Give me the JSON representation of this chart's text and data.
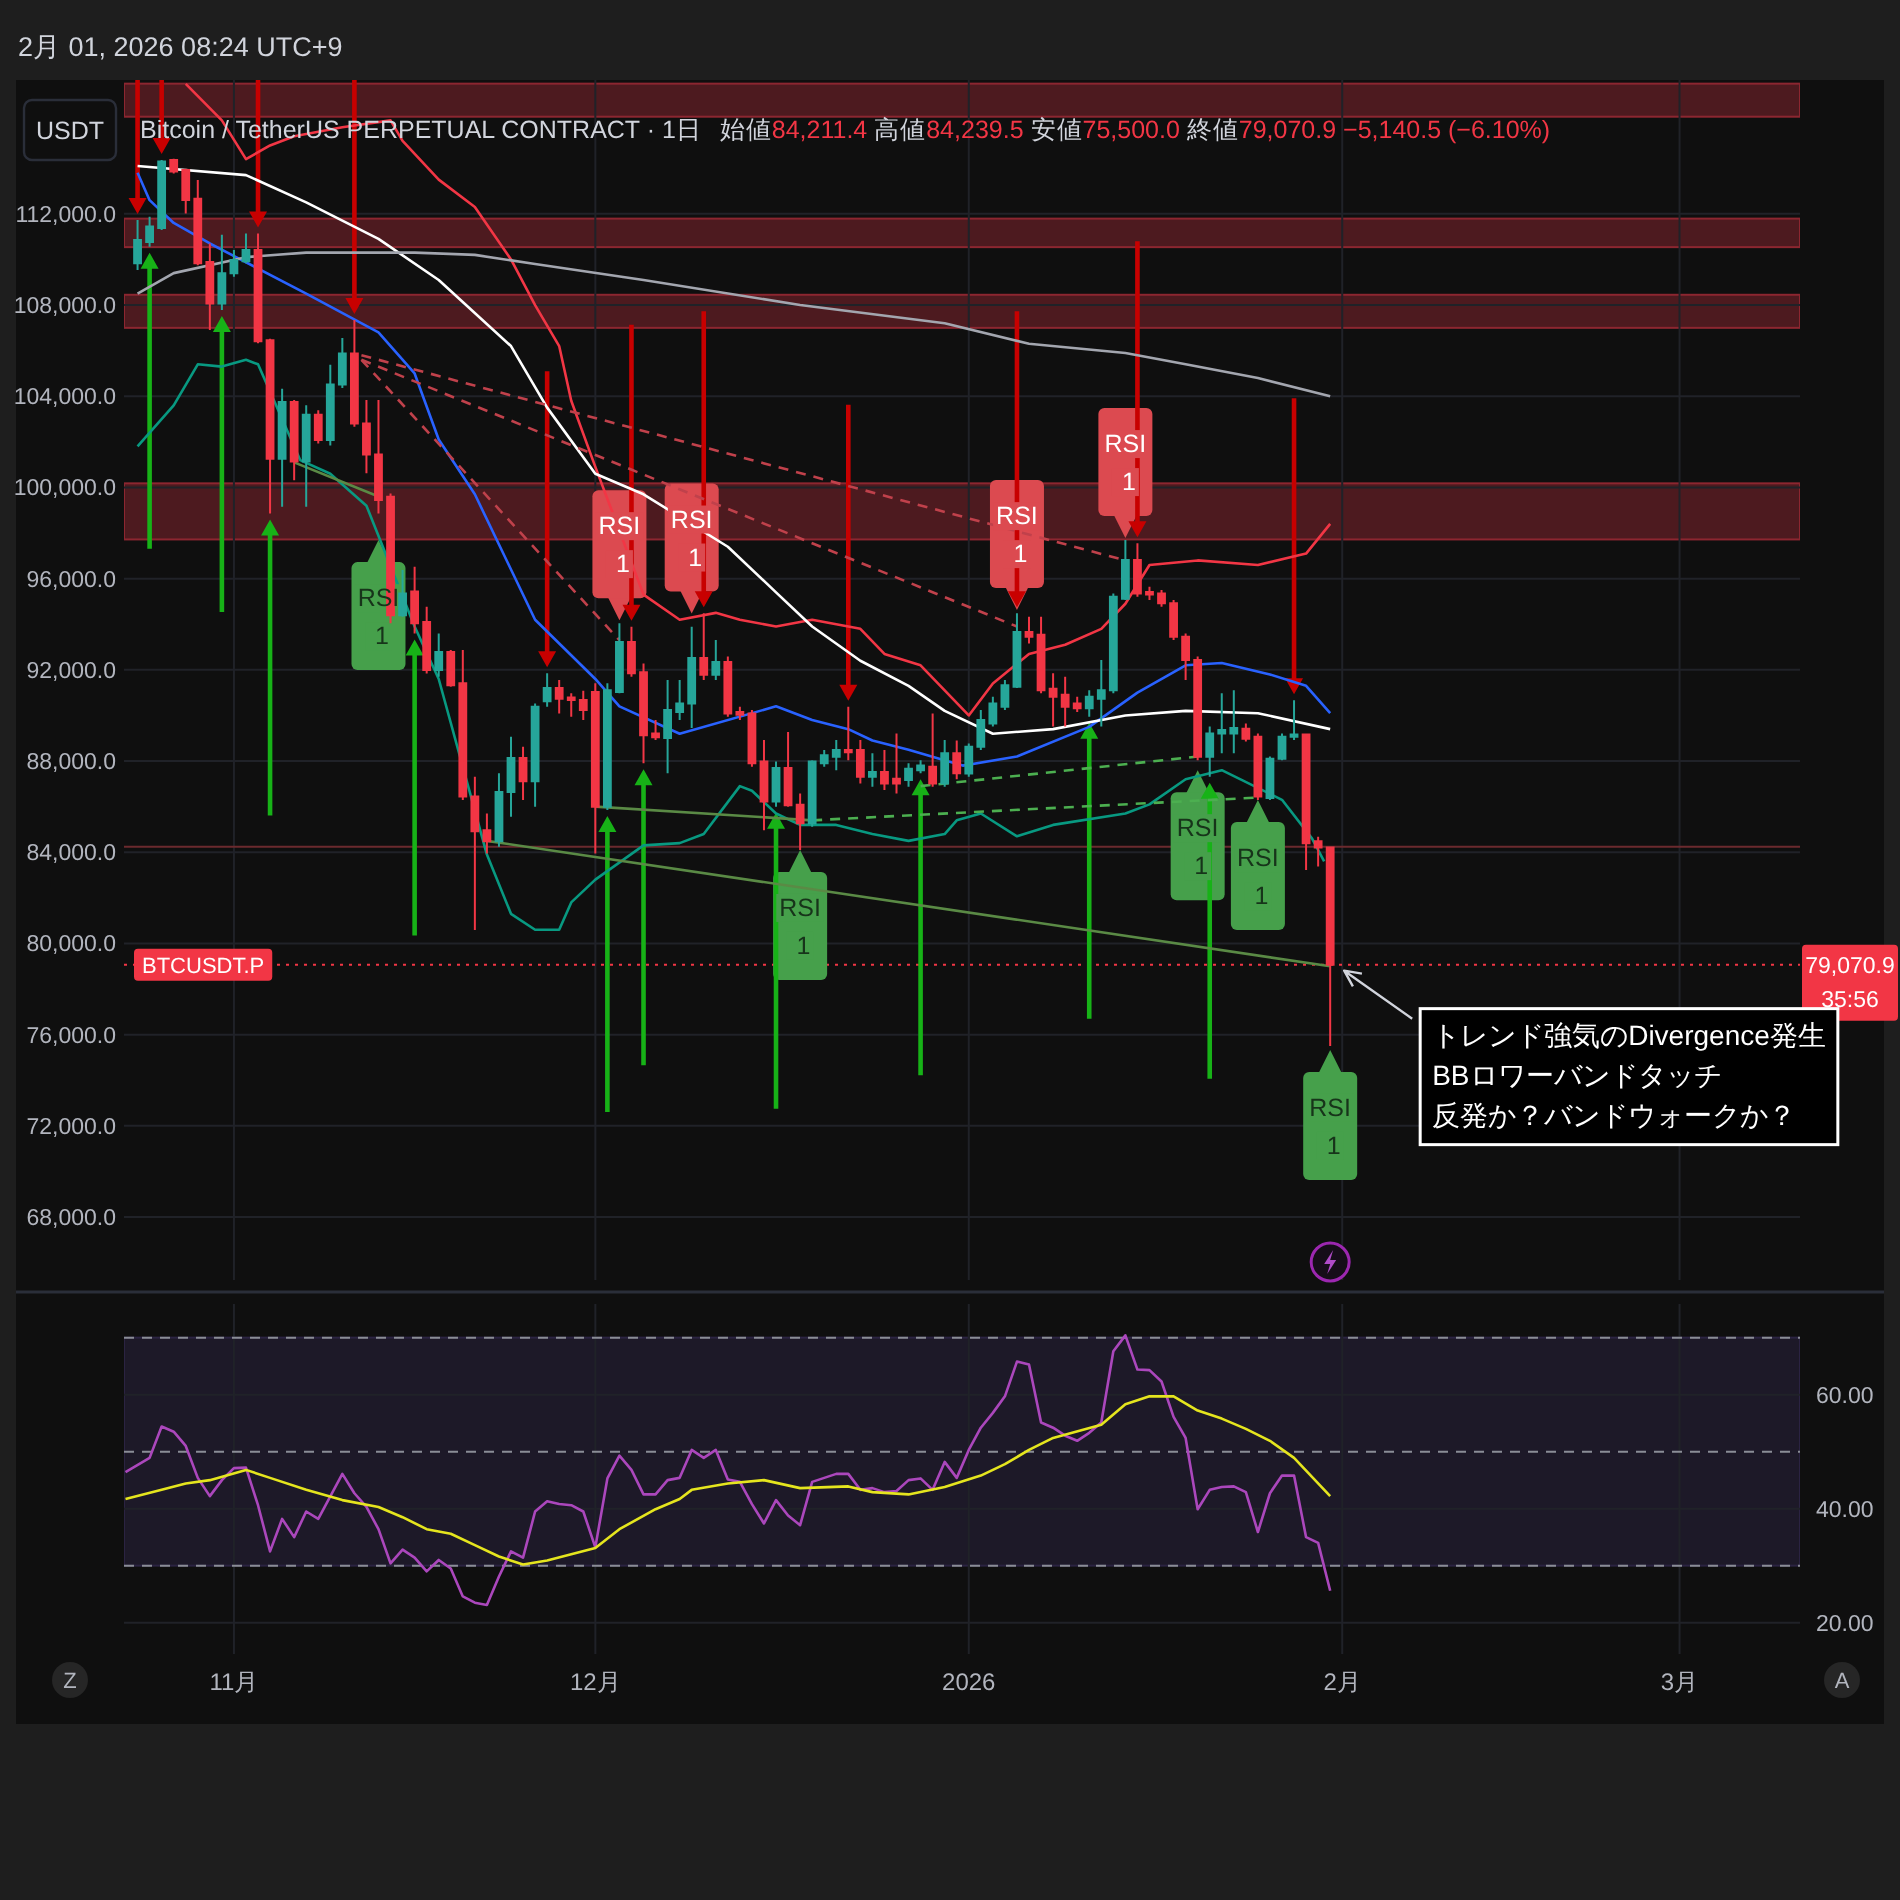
{
  "chart_data": [
    {
      "type": "candlestick",
      "title": "Bitcoin / TetherUS PERPETUAL CONTRACT · 1日",
      "subtitle": "始値84,211.4 高値84,239.5 安値75,500.0 終値79,070.9 −5,140.5 (−6.10%)",
      "ylabel": "USDT",
      "annotations": [
        "2月 01, 2026 08:24 UTC+9",
        "BTCUSDT.P",
        "35:56",
        "BBロワーバンドタッチ",
        "反発か？バンドウォークか？",
        {
          "text": "RSI 1",
          "x": "2025-11-13",
          "y": 97690
        },
        {
          "text": "RSI 1",
          "x": "2025-12-03",
          "y": 94180
        },
        {
          "text": "RSI 1",
          "x": "2025-12-09",
          "y": 94470
        },
        {
          "text": "RSI 1",
          "x": "2025-12-18",
          "y": 84100
        },
        {
          "text": "RSI 1",
          "x": "2026-01-05",
          "y": 94620
        },
        {
          "text": "RSI 1",
          "x": "2026-01-14",
          "y": 97780
        },
        {
          "text": "RSI 1",
          "x": "2026-01-20",
          "y": 87600
        },
        {
          "text": "RSI 1",
          "x": "2026-01-25",
          "y": 86290
        },
        {
          "text": "RSI 1",
          "x": "2026-01-31",
          "y": 75330
        },
        {
          "text": "トレンド強気のDivergence発生",
          "x": "2026-01-31",
          "y": 79070.9
        }
      ],
      "x": [
        "2025-10-24",
        "2025-10-25",
        "2025-10-26",
        "2025-10-27",
        "2025-10-28",
        "2025-10-29",
        "2025-10-30",
        "2025-10-31",
        "2025-11-01",
        "2025-11-02",
        "2025-11-03",
        "2025-11-04",
        "2025-11-05",
        "2025-11-06",
        "2025-11-07",
        "2025-11-08",
        "2025-11-09",
        "2025-11-10",
        "2025-11-11",
        "2025-11-12",
        "2025-11-13",
        "2025-11-14",
        "2025-11-15",
        "2025-11-16",
        "2025-11-17",
        "2025-11-18",
        "2025-11-19",
        "2025-11-20",
        "2025-11-21",
        "2025-11-22",
        "2025-11-23",
        "2025-11-24",
        "2025-11-25",
        "2025-11-26",
        "2025-11-27",
        "2025-11-28",
        "2025-11-29",
        "2025-11-30",
        "2025-12-01",
        "2025-12-02",
        "2025-12-03",
        "2025-12-04",
        "2025-12-05",
        "2025-12-06",
        "2025-12-07",
        "2025-12-08",
        "2025-12-09",
        "2025-12-10",
        "2025-12-11",
        "2025-12-12",
        "2025-12-13",
        "2025-12-14",
        "2025-12-15",
        "2025-12-16",
        "2025-12-17",
        "2025-12-18",
        "2025-12-19",
        "2025-12-20",
        "2025-12-21",
        "2025-12-22",
        "2025-12-23",
        "2025-12-24",
        "2025-12-25",
        "2025-12-26",
        "2025-12-27",
        "2025-12-28",
        "2025-12-29",
        "2025-12-30",
        "2025-12-31",
        "2026-01-01",
        "2026-01-02",
        "2026-01-03",
        "2026-01-04",
        "2026-01-05",
        "2026-01-06",
        "2026-01-07",
        "2026-01-08",
        "2026-01-09",
        "2026-01-10",
        "2026-01-11",
        "2026-01-12",
        "2026-01-13",
        "2026-01-14",
        "2026-01-15",
        "2026-01-16",
        "2026-01-17",
        "2026-01-18",
        "2026-01-19",
        "2026-01-20",
        "2026-01-21",
        "2026-01-22",
        "2026-01-23",
        "2026-01-24",
        "2026-01-25",
        "2026-01-26",
        "2026-01-27",
        "2026-01-28",
        "2026-01-29",
        "2026-01-30",
        "2026-01-31"
      ],
      "ohlc": [
        [
          109830,
          111730,
          109540,
          110850
        ],
        [
          110760,
          111870,
          110560,
          111440
        ],
        [
          111380,
          114360,
          111290,
          114300
        ],
        [
          114360,
          114420,
          113770,
          113860
        ],
        [
          113920,
          113980,
          112020,
          112610
        ],
        [
          112660,
          113480,
          109740,
          109830
        ],
        [
          109890,
          110700,
          106900,
          108070
        ],
        [
          108070,
          111080,
          107780,
          109390
        ],
        [
          109390,
          110410,
          109240,
          109970
        ],
        [
          109920,
          111140,
          109830,
          110410
        ],
        [
          110410,
          111140,
          106320,
          106410
        ],
        [
          106460,
          106520,
          98860,
          101260
        ],
        [
          101260,
          104330,
          99150,
          103750
        ],
        [
          103750,
          103830,
          100320,
          101140
        ],
        [
          101140,
          103600,
          99150,
          103190
        ],
        [
          103190,
          103390,
          101930,
          102080
        ],
        [
          102080,
          105380,
          101840,
          104510
        ],
        [
          104510,
          106550,
          104360,
          105880
        ],
        [
          105880,
          107340,
          102660,
          102810
        ],
        [
          102810,
          103830,
          100620,
          101440
        ],
        [
          101440,
          103830,
          98860,
          99450
        ],
        [
          99590,
          99740,
          94040,
          94390
        ],
        [
          94390,
          96380,
          94330,
          95350
        ],
        [
          95440,
          96520,
          93600,
          94040
        ],
        [
          94100,
          94770,
          91840,
          91990
        ],
        [
          91990,
          93600,
          91700,
          92780
        ],
        [
          92780,
          92870,
          91260,
          91320
        ],
        [
          91410,
          92870,
          86290,
          86440
        ],
        [
          86440,
          87310,
          80590,
          84920
        ],
        [
          84970,
          85700,
          83950,
          84480
        ],
        [
          84480,
          87460,
          84240,
          86640
        ],
        [
          86640,
          89070,
          85560,
          88130
        ],
        [
          88130,
          88630,
          86290,
          87110
        ],
        [
          87110,
          90530,
          86000,
          90380
        ],
        [
          90620,
          91850,
          90380,
          91200
        ],
        [
          91200,
          91550,
          90090,
          90730
        ],
        [
          90790,
          90970,
          89940,
          90680
        ],
        [
          90680,
          91080,
          89800,
          90240
        ],
        [
          91030,
          91410,
          83950,
          86000
        ],
        [
          86000,
          91410,
          85850,
          91110
        ],
        [
          91030,
          94040,
          90970,
          93220
        ],
        [
          93220,
          93890,
          91700,
          91850
        ],
        [
          91900,
          92280,
          87900,
          89130
        ],
        [
          89210,
          89800,
          88920,
          89040
        ],
        [
          89010,
          91550,
          87460,
          90240
        ],
        [
          90150,
          91550,
          89800,
          90530
        ],
        [
          90530,
          93890,
          89450,
          92520
        ],
        [
          92520,
          94480,
          91550,
          91790
        ],
        [
          91790,
          93310,
          91550,
          92340
        ],
        [
          92340,
          92580,
          89940,
          90090
        ],
        [
          90150,
          90380,
          89800,
          90030
        ],
        [
          90090,
          90240,
          87750,
          87900
        ],
        [
          87980,
          88920,
          84970,
          86230
        ],
        [
          86230,
          87980,
          86000,
          87690
        ],
        [
          87690,
          89270,
          86000,
          86060
        ],
        [
          86080,
          86580,
          84100,
          85270
        ],
        [
          85270,
          88040,
          85120,
          87980
        ],
        [
          87900,
          88480,
          87750,
          88250
        ],
        [
          88190,
          88920,
          87600,
          88480
        ],
        [
          88480,
          90380,
          88040,
          88390
        ],
        [
          88480,
          88920,
          87020,
          87310
        ],
        [
          87310,
          88340,
          86870,
          87520
        ],
        [
          87520,
          88480,
          86730,
          87020
        ],
        [
          87220,
          89210,
          86580,
          87020
        ],
        [
          87170,
          87900,
          86870,
          87660
        ],
        [
          87600,
          88040,
          87460,
          87810
        ],
        [
          87750,
          90090,
          86870,
          87020
        ],
        [
          87020,
          88920,
          86870,
          88340
        ],
        [
          88340,
          88900,
          87200,
          87460
        ],
        [
          87460,
          88770,
          87310,
          88630
        ],
        [
          88630,
          90240,
          88480,
          89800
        ],
        [
          89650,
          90820,
          89510,
          90530
        ],
        [
          90380,
          91550,
          90240,
          91320
        ],
        [
          91260,
          94480,
          91200,
          93660
        ],
        [
          93660,
          94330,
          93160,
          93450
        ],
        [
          93540,
          94330,
          90970,
          91110
        ],
        [
          91170,
          91850,
          89510,
          90820
        ],
        [
          90910,
          91700,
          89510,
          90380
        ],
        [
          90530,
          90820,
          90150,
          90320
        ],
        [
          90320,
          91110,
          89940,
          90820
        ],
        [
          90730,
          92430,
          89510,
          91110
        ],
        [
          91110,
          95350,
          90970,
          95210
        ],
        [
          95120,
          97690,
          95060,
          96820
        ],
        [
          96820,
          97550,
          95210,
          95350
        ],
        [
          95410,
          95650,
          95060,
          95300
        ],
        [
          95350,
          95500,
          94770,
          94920
        ],
        [
          94920,
          95060,
          93310,
          93450
        ],
        [
          93450,
          93600,
          91550,
          92430
        ],
        [
          92430,
          92580,
          88040,
          88190
        ],
        [
          88190,
          89510,
          87310,
          89210
        ],
        [
          89210,
          90970,
          88340,
          89360
        ],
        [
          89210,
          91110,
          88340,
          89450
        ],
        [
          89420,
          89650,
          88860,
          88980
        ],
        [
          89070,
          89210,
          86290,
          86440
        ],
        [
          86380,
          88200,
          86290,
          88100
        ],
        [
          88100,
          89210,
          88040,
          89070
        ],
        [
          89070,
          90670,
          88920,
          89160
        ],
        [
          89160,
          89210,
          83220,
          84390
        ],
        [
          84480,
          84680,
          83370,
          84211.4
        ],
        [
          84211.4,
          84239.5,
          75500.0,
          79070.9
        ]
      ],
      "series": [
        {
          "type": "line",
          "color": "#f23645",
          "x": [
            "2025-10-28",
            "2025-10-31",
            "2025-11-02",
            "2025-11-04",
            "2025-11-06",
            "2025-11-10",
            "2025-11-14",
            "2025-11-15",
            "2025-11-18",
            "2025-11-21",
            "2025-11-24",
            "2025-11-26",
            "2025-11-28",
            "2025-11-29",
            "2025-12-01",
            "2025-12-05",
            "2025-12-08",
            "2025-12-11",
            "2025-12-13",
            "2025-12-16",
            "2025-12-19",
            "2025-12-23",
            "2025-12-25",
            "2025-12-28",
            "2026-01-01",
            "2026-01-03",
            "2026-01-06",
            "2026-01-09",
            "2026-01-12",
            "2026-01-14",
            "2026-01-16",
            "2026-01-20",
            "2026-01-25",
            "2026-01-29",
            "2026-01-31"
          ],
          "values": [
            117700,
            116100,
            114400,
            115000,
            115400,
            115800,
            116100,
            115200,
            113500,
            112300,
            110000,
            108000,
            106200,
            103800,
            100900,
            95300,
            94200,
            94500,
            94200,
            93900,
            94200,
            93800,
            92700,
            92200,
            90000,
            91400,
            92700,
            93100,
            93800,
            94900,
            96600,
            96800,
            96600,
            97100,
            98400
          ]
        },
        {
          "type": "line",
          "color": "#2962ff",
          "x": [
            "2025-10-24",
            "2025-10-25",
            "2025-10-27",
            "2025-10-30",
            "2025-11-07",
            "2025-11-13",
            "2025-11-16",
            "2025-11-18",
            "2025-11-21",
            "2025-11-24",
            "2025-11-26",
            "2025-12-01",
            "2025-12-03",
            "2025-12-08",
            "2025-12-16",
            "2025-12-19",
            "2025-12-22",
            "2025-12-24",
            "2025-12-27",
            "2025-12-31T12:00",
            "2026-01-05",
            "2026-01-11",
            "2026-01-15",
            "2026-01-19",
            "2026-01-22",
            "2026-01-26",
            "2026-01-29",
            "2026-01-31"
          ],
          "values": [
            113800,
            112600,
            111600,
            110700,
            108500,
            106800,
            105000,
            102100,
            99700,
            96400,
            94200,
            91600,
            90400,
            89200,
            90400,
            89800,
            89400,
            88900,
            88500,
            87800,
            88200,
            89500,
            91000,
            92200,
            92300,
            91800,
            91300,
            90100
          ]
        },
        {
          "type": "line",
          "color": "#089981",
          "x": [
            "2025-10-24",
            "2025-10-27",
            "2025-10-29",
            "2025-10-31",
            "2025-11-02",
            "2025-11-03",
            "2025-11-06T12:00",
            "2025-11-09",
            "2025-11-12",
            "2025-11-16",
            "2025-11-18",
            "2025-11-22",
            "2025-11-24",
            "2025-11-26",
            "2025-11-28",
            "2025-11-29",
            "2025-12-01",
            "2025-12-05",
            "2025-12-08",
            "2025-12-10",
            "2025-12-13",
            "2025-12-14",
            "2025-12-16",
            "2025-12-18",
            "2025-12-21",
            "2025-12-24",
            "2025-12-27",
            "2025-12-30",
            "2025-12-31",
            "2026-01-02",
            "2026-01-05",
            "2026-01-08",
            "2026-01-14",
            "2026-01-16",
            "2026-01-19",
            "2026-01-22",
            "2026-01-27",
            "2026-01-29T12:00",
            "2026-01-30T12:00"
          ],
          "values": [
            101800,
            103600,
            105400,
            105300,
            105600,
            105400,
            101200,
            100600,
            99200,
            93900,
            91600,
            83900,
            81300,
            80600,
            80600,
            81800,
            82800,
            84300,
            84400,
            84800,
            86900,
            86700,
            85700,
            85200,
            85200,
            84800,
            84500,
            84800,
            85400,
            85700,
            84700,
            85200,
            85700,
            86100,
            87200,
            87600,
            86300,
            84600,
            83600
          ]
        },
        {
          "type": "line",
          "color": "#ffffff",
          "x": [
            "2025-10-24",
            "2025-11-02",
            "2025-11-07",
            "2025-11-13",
            "2025-11-18",
            "2025-11-24",
            "2025-11-27",
            "2025-12-01",
            "2025-12-05",
            "2025-12-12",
            "2025-12-16",
            "2025-12-19",
            "2025-12-23",
            "2025-12-27",
            "2025-12-30",
            "2026-01-03",
            "2026-01-08",
            "2026-01-14",
            "2026-01-19",
            "2026-01-25",
            "2026-01-31"
          ],
          "values": [
            114100,
            113700,
            112500,
            110900,
            109100,
            106200,
            103500,
            100600,
            99700,
            97400,
            95400,
            93900,
            92400,
            91300,
            90200,
            89200,
            89400,
            90000,
            90200,
            90100,
            89400
          ]
        },
        {
          "type": "line",
          "color": "#a3a6af",
          "x": [
            "2025-10-24",
            "2025-10-27",
            "2025-11-02",
            "2025-11-07",
            "2025-11-13",
            "2025-11-16",
            "2025-11-21",
            "2025-11-26",
            "2025-12-05",
            "2025-12-18",
            "2025-12-30",
            "2026-01-06",
            "2026-01-14",
            "2026-01-19",
            "2026-01-25",
            "2026-01-31"
          ],
          "values": [
            108500,
            109400,
            110100,
            110300,
            110300,
            110300,
            110200,
            109800,
            109100,
            108000,
            107200,
            106300,
            105900,
            105400,
            104800,
            104000
          ]
        },
        {
          "type": "line",
          "color": "#c0414b",
          "line_style": "dashed",
          "x": [
            "2025-11-11T14:00",
            "2025-12-03"
          ],
          "values": [
            105600,
            93300
          ]
        },
        {
          "type": "line",
          "color": "#c0414b",
          "line_style": "dashed",
          "x": [
            "2025-11-11T14:00",
            "2026-01-05"
          ],
          "values": [
            105600,
            93900
          ]
        },
        {
          "type": "line",
          "color": "#c0414b",
          "line_style": "dashed",
          "x": [
            "2025-11-11T14:00",
            "2026-01-14"
          ],
          "values": [
            105800,
            96800
          ]
        },
        {
          "type": "line",
          "color": "#5a8a45",
          "x": [
            "2025-11-06",
            "2025-11-13"
          ],
          "values": [
            101100,
            99600
          ]
        },
        {
          "type": "line",
          "color": "#5a8a45",
          "x": [
            "2025-11-22",
            "2026-01-31"
          ],
          "values": [
            84500,
            79000
          ]
        },
        {
          "type": "line",
          "color": "#5a8a45",
          "x": [
            "2025-12-01",
            "2025-12-19"
          ],
          "values": [
            86000,
            85400
          ]
        },
        {
          "type": "line",
          "color": "#4caf50",
          "line_style": "dashed",
          "x": [
            "2025-12-19",
            "2026-01-25"
          ],
          "values": [
            85400,
            86400
          ]
        },
        {
          "type": "line",
          "color": "#4caf50",
          "line_style": "dashed",
          "x": [
            "2025-12-28",
            "2026-01-20"
          ],
          "values": [
            86900,
            88200
          ]
        }
      ],
      "xlim": [
        "2025-10-22T21:00",
        "2026-03-11"
      ],
      "ylim": [
        65240,
        117870
      ],
      "xticks": [
        {
          "value": "2025-11-01",
          "label": null
        },
        {
          "value": "2025-12-01",
          "label": null
        },
        {
          "value": "2026-01-01",
          "label": null
        },
        {
          "value": "2026-02-01",
          "label": null
        },
        {
          "value": "2026-03-01",
          "label": null
        }
      ],
      "yticks": [
        {
          "value": 68000,
          "label": "68,000.0"
        },
        {
          "value": 72000,
          "label": "72,000.0"
        },
        {
          "value": 76000,
          "label": "76,000.0"
        },
        {
          "value": 80000,
          "label": "80,000.0"
        },
        {
          "value": 84000,
          "label": "84,000.0"
        },
        {
          "value": 88000,
          "label": "88,000.0"
        },
        {
          "value": 92000,
          "label": "92,000.0"
        },
        {
          "value": 96000,
          "label": "96,000.0"
        },
        {
          "value": 100000,
          "label": "100,000.0"
        },
        {
          "value": 104000,
          "label": "104,000.0"
        },
        {
          "value": 108000,
          "label": "108,000.0"
        },
        {
          "value": 112000,
          "label": "112,000.0"
        }
      ],
      "tick_labels": "y",
      "grid": true,
      "bands": [
        {
          "axis": "y",
          "from": 116260,
          "to": 117710,
          "color": "#8c2630"
        },
        {
          "axis": "y",
          "from": 110540,
          "to": 111790,
          "color": "#8c2630"
        },
        {
          "axis": "y",
          "from": 107000,
          "to": 108450,
          "color": "#8c2630"
        },
        {
          "axis": "y",
          "from": 97720,
          "to": 100180,
          "color": "#8c2630"
        }
      ],
      "ref_lines": [
        {
          "axis": "y",
          "value": 84240,
          "color": "#6b2a2e",
          "line_style": "solid"
        },
        {
          "axis": "y",
          "value": 79070.9,
          "label": "79,070.9",
          "color": "#f23645",
          "line_style": "dotted"
        }
      ]
    },
    {
      "type": "line",
      "series": [
        {
          "color": "#ab47bc",
          "x": [
            "2025-10-23",
            "2025-10-25",
            "2025-10-26",
            "2025-10-27",
            "2025-10-28",
            "2025-10-29",
            "2025-10-30",
            "2025-10-31",
            "2025-11-01",
            "2025-11-02",
            "2025-11-03",
            "2025-11-04",
            "2025-11-05",
            "2025-11-06",
            "2025-11-07",
            "2025-11-08",
            "2025-11-10",
            "2025-11-11",
            "2025-11-12",
            "2025-11-13",
            "2025-11-14",
            "2025-11-15",
            "2025-11-16",
            "2025-11-17",
            "2025-11-18",
            "2025-11-19",
            "2025-11-20",
            "2025-11-21",
            "2025-11-22",
            "2025-11-23",
            "2025-11-24",
            "2025-11-25",
            "2025-11-26",
            "2025-11-27",
            "2025-11-28",
            "2025-11-29",
            "2025-11-30",
            "2025-12-01",
            "2025-12-02",
            "2025-12-03",
            "2025-12-04",
            "2025-12-05",
            "2025-12-06",
            "2025-12-07",
            "2025-12-08",
            "2025-12-09",
            "2025-12-10",
            "2025-12-11",
            "2025-12-12",
            "2025-12-13",
            "2025-12-14",
            "2025-12-15",
            "2025-12-16",
            "2025-12-17",
            "2025-12-18",
            "2025-12-19",
            "2025-12-20",
            "2025-12-21",
            "2025-12-22",
            "2025-12-23",
            "2025-12-24",
            "2025-12-25",
            "2025-12-26",
            "2025-12-27",
            "2025-12-28",
            "2025-12-29",
            "2025-12-30",
            "2025-12-31",
            "2026-01-01",
            "2026-01-02",
            "2026-01-03",
            "2026-01-04",
            "2026-01-05",
            "2026-01-06",
            "2026-01-07",
            "2026-01-08",
            "2026-01-09",
            "2026-01-10",
            "2026-01-11",
            "2026-01-12",
            "2026-01-13",
            "2026-01-14",
            "2026-01-15",
            "2026-01-16",
            "2026-01-17",
            "2026-01-18",
            "2026-01-19",
            "2026-01-20",
            "2026-01-21",
            "2026-01-22",
            "2026-01-23",
            "2026-01-24",
            "2026-01-25",
            "2026-01-26",
            "2026-01-27",
            "2026-01-28",
            "2026-01-29",
            "2026-01-30",
            "2026-01-31"
          ],
          "values": [
            46.4,
            48.9,
            54.4,
            53.5,
            51.0,
            45.4,
            42.2,
            45.0,
            47.1,
            47.2,
            40.6,
            32.5,
            38.2,
            35.0,
            39.5,
            38.2,
            46.1,
            42.7,
            40.3,
            36.4,
            30.4,
            32.8,
            31.4,
            29.0,
            31.0,
            29.5,
            24.6,
            23.5,
            23.1,
            28.1,
            32.5,
            31.4,
            39.5,
            41.3,
            40.8,
            40.6,
            39.5,
            33.2,
            45.3,
            49.3,
            46.8,
            42.5,
            42.5,
            45.0,
            45.4,
            50.3,
            48.9,
            50.3,
            45.1,
            44.7,
            40.8,
            37.4,
            41.5,
            38.8,
            37.1,
            44.7,
            45.4,
            46.1,
            46.1,
            43.3,
            43.6,
            42.9,
            43.1,
            45.0,
            45.3,
            43.3,
            48.2,
            45.4,
            50.3,
            54.2,
            56.8,
            59.7,
            65.8,
            65.3,
            55.1,
            54.2,
            52.8,
            51.9,
            53.3,
            55.1,
            67.6,
            70.4,
            64.4,
            64.3,
            62.3,
            56.1,
            52.4,
            39.9,
            43.3,
            43.8,
            43.9,
            42.9,
            35.9,
            42.7,
            45.8,
            45.8,
            35.0,
            34.0,
            25.6
          ]
        },
        {
          "color": "#e5e51e",
          "x": [
            "2025-10-23",
            "2025-10-26",
            "2025-10-28",
            "2025-10-30",
            "2025-11-02",
            "2025-11-04",
            "2025-11-07",
            "2025-11-10",
            "2025-11-13",
            "2025-11-15",
            "2025-11-17",
            "2025-11-19",
            "2025-11-21",
            "2025-11-23",
            "2025-11-25",
            "2025-11-27",
            "2025-11-29",
            "2025-12-01",
            "2025-12-03",
            "2025-12-06",
            "2025-12-08",
            "2025-12-09",
            "2025-12-12",
            "2025-12-15",
            "2025-12-18",
            "2025-12-22",
            "2025-12-24",
            "2025-12-27",
            "2025-12-30",
            "2026-01-02",
            "2026-01-04",
            "2026-01-06",
            "2026-01-08",
            "2026-01-12",
            "2026-01-14",
            "2026-01-16",
            "2026-01-18",
            "2026-01-20",
            "2026-01-22",
            "2026-01-24",
            "2026-01-26",
            "2026-01-28",
            "2026-01-31"
          ],
          "values": [
            41.7,
            43.3,
            44.4,
            45.0,
            46.8,
            45.4,
            43.3,
            41.5,
            40.3,
            38.5,
            36.4,
            35.6,
            33.6,
            31.6,
            30.2,
            30.9,
            32.0,
            33.1,
            36.4,
            39.9,
            41.7,
            43.3,
            44.4,
            45.0,
            43.6,
            43.9,
            42.9,
            42.5,
            43.8,
            45.8,
            47.8,
            50.3,
            52.4,
            54.7,
            58.3,
            59.7,
            59.7,
            57.2,
            55.8,
            54.0,
            51.9,
            48.9,
            42.2
          ]
        }
      ],
      "xlim": [
        "2025-10-22T21:00",
        "2026-03-11"
      ],
      "ylim": [
        14.5,
        75.9
      ],
      "xticks": [
        {
          "value": "2025-11-01",
          "label": "11月"
        },
        {
          "value": "2025-12-01",
          "label": "12月"
        },
        {
          "value": "2026-01-01",
          "label": "2026"
        },
        {
          "value": "2026-02-01",
          "label": "2月"
        },
        {
          "value": "2026-03-01",
          "label": "3月"
        }
      ],
      "yticks": [
        {
          "value": 20,
          "label": "20.00"
        },
        {
          "value": 40,
          "label": "40.00"
        },
        {
          "value": 60,
          "label": "60.00"
        }
      ],
      "grid": true,
      "bands": [
        {
          "axis": "y",
          "from": 30,
          "to": 70,
          "color": "#2b2342"
        }
      ],
      "ref_lines": [
        {
          "axis": "y",
          "value": 70,
          "color": "#8a8d96",
          "line_style": "dashed"
        },
        {
          "axis": "y",
          "value": 50,
          "color": "#8a8d96",
          "line_style": "dashed"
        },
        {
          "axis": "y",
          "value": 30,
          "color": "#8a8d96",
          "line_style": "dashed"
        }
      ],
      "annotations": [
        "Z",
        "A"
      ]
    }
  ]
}
